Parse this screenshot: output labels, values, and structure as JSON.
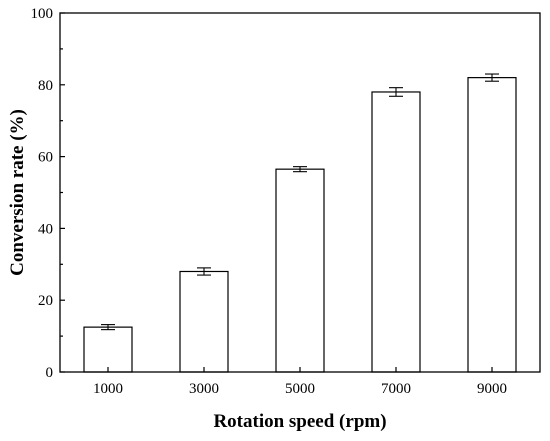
{
  "chart_data": {
    "type": "bar",
    "categories": [
      "1000",
      "3000",
      "5000",
      "7000",
      "9000"
    ],
    "values": [
      12.5,
      28,
      56.5,
      78,
      82
    ],
    "errors": [
      0.7,
      1.0,
      0.7,
      1.2,
      1.0
    ],
    "xlabel": "Rotation speed (rpm)",
    "ylabel": "Conversion rate (%)",
    "ylim": [
      0,
      100
    ],
    "yticks": [
      0,
      20,
      40,
      60,
      80,
      100
    ],
    "grid": false,
    "legend": "none"
  }
}
